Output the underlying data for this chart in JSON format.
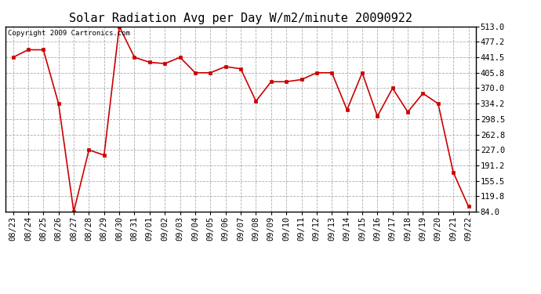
{
  "title": "Solar Radiation Avg per Day W/m2/minute 20090922",
  "copyright_text": "Copyright 2009 Cartronics.com",
  "dates": [
    "08/23",
    "08/24",
    "08/25",
    "08/26",
    "08/27",
    "08/28",
    "08/29",
    "08/30",
    "08/31",
    "09/01",
    "09/02",
    "09/03",
    "09/04",
    "09/05",
    "09/06",
    "09/07",
    "09/08",
    "09/09",
    "09/10",
    "09/11",
    "09/12",
    "09/13",
    "09/14",
    "09/15",
    "09/16",
    "09/17",
    "09/18",
    "09/19",
    "09/20",
    "09/21",
    "09/22"
  ],
  "values": [
    441.5,
    459.0,
    459.0,
    334.2,
    84.0,
    227.0,
    215.0,
    513.0,
    441.5,
    430.0,
    427.0,
    441.5,
    405.8,
    405.8,
    420.0,
    415.0,
    340.0,
    385.0,
    385.0,
    390.0,
    405.8,
    405.8,
    320.0,
    405.8,
    305.0,
    370.0,
    315.0,
    358.0,
    334.2,
    175.0,
    96.0
  ],
  "line_color": "#cc0000",
  "marker_color": "#cc0000",
  "bg_color": "#ffffff",
  "grid_color": "#aaaaaa",
  "yticks": [
    513.0,
    477.2,
    441.5,
    405.8,
    370.0,
    334.2,
    298.5,
    262.8,
    227.0,
    191.2,
    155.5,
    119.8,
    84.0
  ],
  "ymin": 84.0,
  "ymax": 513.0,
  "title_fontsize": 11,
  "tick_fontsize": 7.5,
  "copyright_fontsize": 6.5
}
